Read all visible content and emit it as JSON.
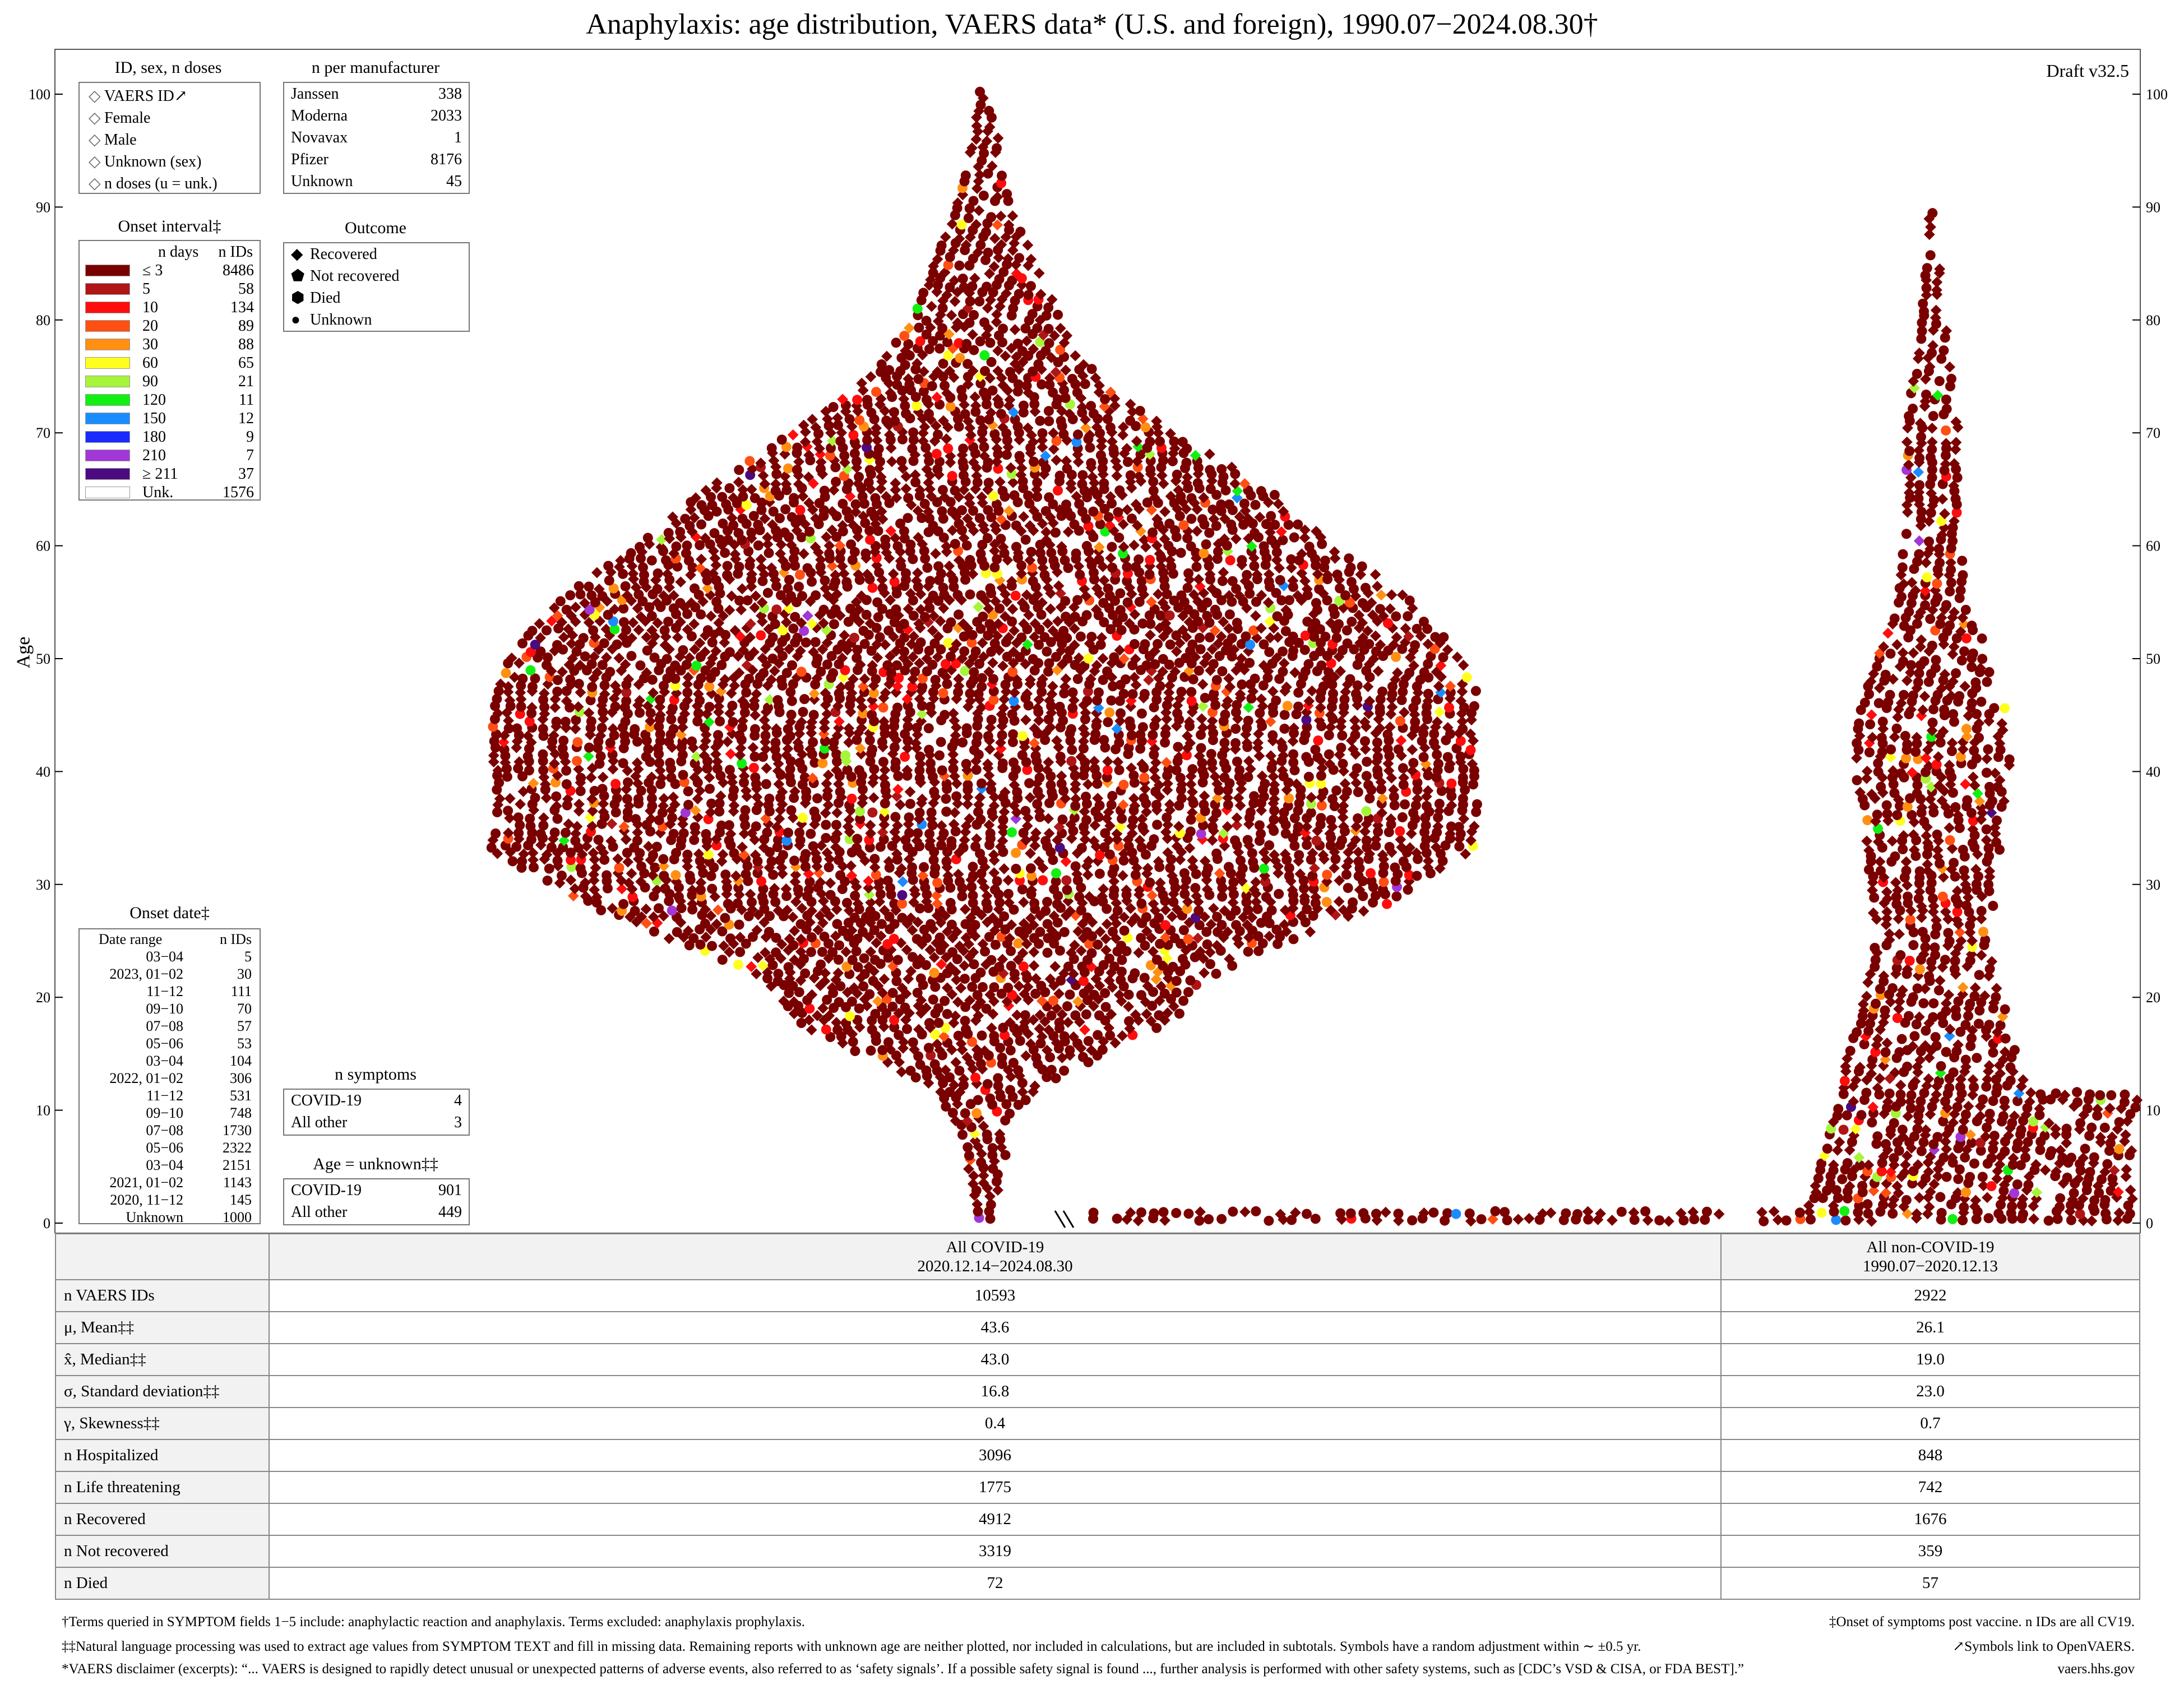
{
  "title": "Anaphylaxis: age distribution, VAERS data* (U.S. and foreign), 1990.07−2024.08.30†",
  "draft": "Draft v32.5",
  "legend_id": {
    "title": "ID, sex, n doses",
    "items": [
      "VAERS ID↗",
      "Female",
      "Male",
      "Unknown (sex)",
      "n doses (u = unk.)"
    ]
  },
  "legend_manufacturer": {
    "title": "n per manufacturer",
    "rows": [
      {
        "name": "Janssen",
        "n": "338"
      },
      {
        "name": "Moderna",
        "n": "2033"
      },
      {
        "name": "Novavax",
        "n": "1"
      },
      {
        "name": "Pfizer",
        "n": "8176"
      },
      {
        "name": "Unknown",
        "n": "45"
      }
    ]
  },
  "legend_onset_interval": {
    "title": "Onset interval‡",
    "col1": "n days",
    "col2": "n IDs",
    "rows": [
      {
        "label": "≤ 3",
        "n": "8486",
        "color": "#7a0000"
      },
      {
        "label": "5",
        "n": "58",
        "color": "#b01515"
      },
      {
        "label": "10",
        "n": "134",
        "color": "#ff0d0d"
      },
      {
        "label": "20",
        "n": "89",
        "color": "#ff4f12"
      },
      {
        "label": "30",
        "n": "88",
        "color": "#ff9012"
      },
      {
        "label": "60",
        "n": "65",
        "color": "#ffff1f"
      },
      {
        "label": "90",
        "n": "21",
        "color": "#a6f53a"
      },
      {
        "label": "120",
        "n": "11",
        "color": "#12f012"
      },
      {
        "label": "150",
        "n": "12",
        "color": "#1a8cff"
      },
      {
        "label": "180",
        "n": "9",
        "color": "#1a2bff"
      },
      {
        "label": "210",
        "n": "7",
        "color": "#a236d6"
      },
      {
        "label": "≥ 211",
        "n": "37",
        "color": "#4b0a80"
      },
      {
        "label": "Unk.",
        "n": "1576",
        "color": "#ffffff"
      }
    ]
  },
  "legend_outcome": {
    "title": "Outcome",
    "items": [
      "Recovered",
      "Not recovered",
      "Died",
      "Unknown"
    ]
  },
  "legend_onset_date": {
    "title": "Onset date‡",
    "col1": "Date range",
    "col2": "n IDs",
    "rows": [
      {
        "range": "03−04",
        "n": "5"
      },
      {
        "range": "2023, 01−02",
        "n": "30"
      },
      {
        "range": "11−12",
        "n": "111"
      },
      {
        "range": "09−10",
        "n": "70"
      },
      {
        "range": "07−08",
        "n": "57"
      },
      {
        "range": "05−06",
        "n": "53"
      },
      {
        "range": "03−04",
        "n": "104"
      },
      {
        "range": "2022, 01−02",
        "n": "306"
      },
      {
        "range": "11−12",
        "n": "531"
      },
      {
        "range": "09−10",
        "n": "748"
      },
      {
        "range": "07−08",
        "n": "1730"
      },
      {
        "range": "05−06",
        "n": "2322"
      },
      {
        "range": "03−04",
        "n": "2151"
      },
      {
        "range": "2021, 01−02",
        "n": "1143"
      },
      {
        "range": "2020, 11−12",
        "n": "145"
      },
      {
        "range": "Unknown",
        "n": "1000"
      }
    ]
  },
  "legend_symptoms": {
    "title": "n symptoms",
    "rows": [
      {
        "name": "COVID-19",
        "n": "4"
      },
      {
        "name": "All other",
        "n": "3"
      }
    ]
  },
  "legend_age_unknown": {
    "title": "Age = unknown‡‡",
    "rows": [
      {
        "name": "COVID-19",
        "n": "901"
      },
      {
        "name": "All other",
        "n": "449"
      }
    ]
  },
  "chart_data": {
    "type": "scatter",
    "title": "Anaphylaxis: age distribution, VAERS data* (U.S. and foreign), 1990.07−2024.08.30†",
    "ylabel": "Age",
    "ylim": [
      0,
      100
    ],
    "yticks": [
      "0",
      "10",
      "20",
      "30",
      "40",
      "50",
      "60",
      "70",
      "80",
      "90",
      "100"
    ],
    "series": [
      {
        "name": "All COVID-19",
        "n": 10593,
        "mean": 43.6,
        "median": 43.0,
        "sd": 16.8,
        "skew": 0.4
      },
      {
        "name": "All non-COVID-19",
        "n": 2922,
        "mean": 26.1,
        "median": 19.0,
        "sd": 23.0,
        "skew": 0.7
      }
    ]
  },
  "stats_table": {
    "col_covid": "All COVID-19",
    "col_covid_range": "2020.12.14−2024.08.30",
    "col_noncovid": "All non-COVID-19",
    "col_noncovid_range": "1990.07−2020.12.13",
    "rows": [
      {
        "label": "n VAERS IDs",
        "covid": "10593",
        "noncovid": "2922"
      },
      {
        "label": "μ, Mean‡‡",
        "covid": "43.6",
        "noncovid": "26.1"
      },
      {
        "label": "x̂, Median‡‡",
        "covid": "43.0",
        "noncovid": "19.0"
      },
      {
        "label": "σ, Standard deviation‡‡",
        "covid": "16.8",
        "noncovid": "23.0"
      },
      {
        "label": "γ, Skewness‡‡",
        "covid": "0.4",
        "noncovid": "0.7"
      },
      {
        "label": "n Hospitalized",
        "covid": "3096",
        "noncovid": "848"
      },
      {
        "label": "n Life threatening",
        "covid": "1775",
        "noncovid": "742"
      },
      {
        "label": "n Recovered",
        "covid": "4912",
        "noncovid": "1676"
      },
      {
        "label": "n Not recovered",
        "covid": "3319",
        "noncovid": "359"
      },
      {
        "label": "n Died",
        "covid": "72",
        "noncovid": "57"
      }
    ]
  },
  "footnotes": {
    "terms": "†Terms queried in SYMPTOM fields 1−5 include: anaphylactic reaction and anaphylaxis. Terms excluded: anaphylaxis prophylaxis.",
    "onset": "‡Onset of symptoms post vaccine. n IDs are all CV19.",
    "nlp": "‡‡Natural language processing was used to extract age values from SYMPTOM TEXT and fill in missing data. Remaining reports with unknown age are neither plotted, nor included in calculations, but are included in subtotals. Symbols have a random adjustment within ∼ ±0.5 yr.",
    "links": "↗Symbols link to OpenVAERS.",
    "disclaimer": "*VAERS disclaimer (excerpts): “... VAERS is designed to rapidly detect unusual or unexpected patterns of adverse events, also referred to as ‘safety signals’. If a possible safety signal is found ..., further analysis is performed with other safety systems, such as [CDC’s VSD & CISA, or FDA BEST].”",
    "source": "vaers.hhs.gov"
  }
}
